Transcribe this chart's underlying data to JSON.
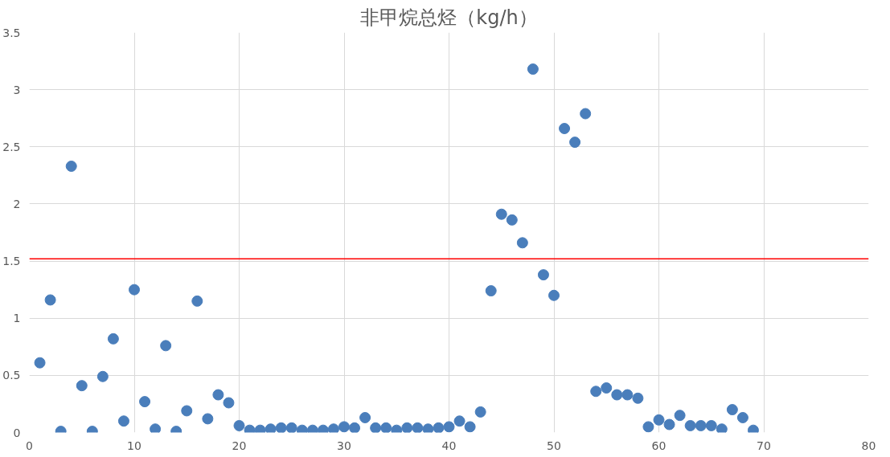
{
  "chart_data": {
    "type": "scatter",
    "title": "非甲烷总烃（kg/h）",
    "x": [
      1,
      2,
      3,
      4,
      5,
      6,
      7,
      8,
      9,
      10,
      11,
      12,
      13,
      14,
      15,
      16,
      17,
      18,
      19,
      20,
      21,
      22,
      23,
      24,
      25,
      26,
      27,
      28,
      29,
      30,
      31,
      32,
      33,
      34,
      35,
      36,
      37,
      38,
      39,
      40,
      41,
      42,
      43,
      44,
      45,
      46,
      47,
      48,
      49,
      50,
      51,
      52,
      53,
      54,
      55,
      56,
      57,
      58,
      59,
      60,
      61,
      62,
      63,
      64,
      65,
      66,
      67,
      68,
      69
    ],
    "series": [
      {
        "color": "#4a7ebb",
        "values": [
          0.61,
          1.16,
          0.01,
          2.33,
          0.41,
          0.01,
          0.49,
          0.82,
          0.1,
          1.25,
          0.27,
          0.03,
          0.76,
          0.01,
          0.19,
          1.15,
          0.12,
          0.33,
          0.26,
          0.06,
          0.02,
          0.02,
          0.03,
          0.04,
          0.04,
          0.02,
          0.02,
          0.02,
          0.03,
          0.05,
          0.04,
          0.13,
          0.04,
          0.04,
          0.02,
          0.04,
          0.04,
          0.03,
          0.04,
          0.05,
          0.1,
          0.05,
          0.18,
          1.24,
          1.91,
          1.86,
          1.66,
          3.18,
          1.38,
          1.2,
          2.66,
          2.54,
          2.79,
          0.36,
          0.39,
          0.33,
          0.33,
          0.3,
          0.05,
          0.11,
          0.07,
          0.15,
          0.06,
          0.06,
          0.06,
          0.03,
          0.2,
          0.13,
          0.02
        ]
      }
    ],
    "xlim": [
      0,
      80
    ],
    "xticks": [
      0,
      10,
      20,
      30,
      40,
      50,
      60,
      70,
      80
    ],
    "ylim": [
      0,
      3.5
    ],
    "yticks": [
      0,
      0.5,
      1,
      1.5,
      2,
      2.5,
      3,
      3.5
    ],
    "ref_lines": [
      {
        "axis": "y",
        "value": 1.52,
        "color": "#ff0000"
      }
    ],
    "grid": true,
    "marker": "circle"
  }
}
